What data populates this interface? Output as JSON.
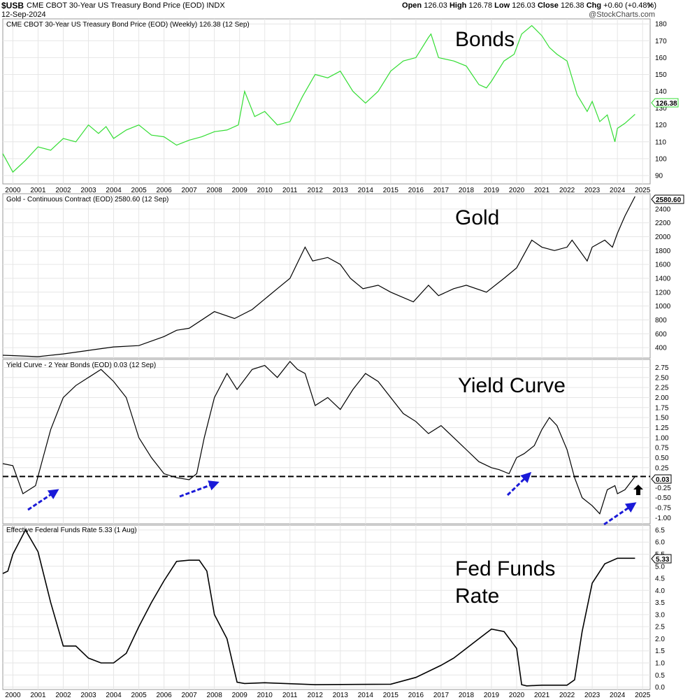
{
  "header": {
    "symbol": "$USB",
    "description": "CME CBOT 30-Year US Treasury Bond Price (EOD)",
    "exchange": "INDX",
    "date": "12-Sep-2024",
    "open_label": "Open",
    "open": "126.03",
    "high_label": "High",
    "high": "126.78",
    "low_label": "Low",
    "low": "126.03",
    "close_label": "Close",
    "close": "126.38",
    "chg_label": "Chg",
    "chg": "+0.60 (+0.48%)",
    "brand": "@StockCharts.com",
    "close_icon": "close-x-icon"
  },
  "colors": {
    "bonds_line": "#33dd33",
    "yield_arrows": "#1a1ad8",
    "frame": "#999999"
  },
  "chart_data": [
    {
      "type": "line",
      "title": "CME CBOT 30-Year US Treasury Bond Price (EOD) (Weekly) 126.38 (12 Sep)",
      "annotation": "Bonds",
      "last_label": "126.38",
      "x_ticks": [
        "2000",
        "2001",
        "2002",
        "2003",
        "2004",
        "2005",
        "2006",
        "2007",
        "2008",
        "2009",
        "2010",
        "2011",
        "2012",
        "2013",
        "2014",
        "2015",
        "2016",
        "2017",
        "2018",
        "2019",
        "2020",
        "2021",
        "2022",
        "2023",
        "2024",
        "2025"
      ],
      "y_ticks": [
        90,
        100,
        110,
        120,
        130,
        140,
        150,
        160,
        170,
        180
      ],
      "ylim": [
        85,
        183
      ],
      "xlim": [
        1999.6,
        2025.3
      ],
      "x": [
        1999.6,
        2000.0,
        2000.5,
        2001.0,
        2001.5,
        2002.0,
        2002.5,
        2003.0,
        2003.4,
        2003.7,
        2004.0,
        2004.5,
        2005.0,
        2005.5,
        2006.0,
        2006.5,
        2007.0,
        2007.5,
        2008.0,
        2008.5,
        2008.95,
        2009.2,
        2009.6,
        2010.0,
        2010.5,
        2011.0,
        2011.5,
        2012.0,
        2012.5,
        2013.0,
        2013.5,
        2014.0,
        2014.5,
        2015.0,
        2015.5,
        2016.0,
        2016.5,
        2016.6,
        2016.9,
        2017.5,
        2018.0,
        2018.5,
        2018.8,
        2019.0,
        2019.5,
        2019.9,
        2020.2,
        2020.6,
        2021.0,
        2021.3,
        2021.6,
        2022.0,
        2022.4,
        2022.8,
        2023.0,
        2023.3,
        2023.6,
        2023.9,
        2024.0,
        2024.3,
        2024.7
      ],
      "y": [
        103,
        92,
        99,
        107,
        105,
        112,
        110,
        120,
        115,
        119,
        112,
        117,
        120,
        114,
        113,
        108,
        111,
        113,
        116,
        117,
        120,
        140,
        125,
        128,
        120,
        122,
        137,
        150,
        148,
        152,
        140,
        133,
        140,
        152,
        158,
        160,
        172,
        174,
        160,
        158,
        155,
        144,
        142,
        146,
        158,
        162,
        174,
        179,
        173,
        166,
        162,
        158,
        138,
        128,
        134,
        122,
        126,
        110,
        118,
        121,
        126.38
      ]
    },
    {
      "type": "line",
      "title": "Gold - Continuous Contract (EOD) 2580.60 (12 Sep)",
      "annotation": "Gold",
      "last_label": "2580.60",
      "y_ticks": [
        400,
        600,
        800,
        1000,
        1200,
        1400,
        1600,
        1800,
        2000,
        2200,
        2400
      ],
      "ylim": [
        250,
        2620
      ],
      "xlim": [
        1999.6,
        2025.3
      ],
      "x": [
        1999.6,
        2000.0,
        2001.0,
        2002.0,
        2003.0,
        2004.0,
        2005.0,
        2006.0,
        2006.5,
        2007.0,
        2008.0,
        2008.8,
        2009.5,
        2010.0,
        2010.5,
        2011.0,
        2011.6,
        2011.9,
        2012.5,
        2013.0,
        2013.4,
        2013.9,
        2014.5,
        2015.0,
        2015.9,
        2016.5,
        2016.9,
        2017.5,
        2018.0,
        2018.8,
        2019.5,
        2020.0,
        2020.6,
        2021.0,
        2021.5,
        2022.0,
        2022.2,
        2022.8,
        2023.0,
        2023.5,
        2023.8,
        2024.0,
        2024.3,
        2024.7
      ],
      "y": [
        290,
        285,
        270,
        310,
        360,
        410,
        430,
        560,
        650,
        680,
        920,
        820,
        950,
        1100,
        1250,
        1400,
        1850,
        1650,
        1700,
        1600,
        1400,
        1250,
        1300,
        1200,
        1060,
        1300,
        1150,
        1250,
        1300,
        1200,
        1400,
        1550,
        1950,
        1850,
        1800,
        1850,
        1950,
        1650,
        1850,
        1950,
        1850,
        2050,
        2300,
        2580.6
      ]
    },
    {
      "type": "line",
      "title": "Yield Curve - 2 Year Bonds (EOD) 0.03 (12 Sep)",
      "annotation": "Yield Curve",
      "last_label": "0.03",
      "reference_line": 0.03,
      "y_ticks": [
        -1.0,
        -0.75,
        -0.5,
        -0.25,
        0.25,
        0.5,
        0.75,
        1.0,
        1.25,
        1.5,
        1.75,
        2.0,
        2.25,
        2.5,
        2.75
      ],
      "ylim": [
        -1.15,
        2.95
      ],
      "xlim": [
        1999.6,
        2025.3
      ],
      "x": [
        1999.6,
        2000.0,
        2000.4,
        2000.9,
        2001.2,
        2001.5,
        2002.0,
        2002.5,
        2003.0,
        2003.5,
        2004.0,
        2004.5,
        2005.0,
        2005.5,
        2006.0,
        2006.5,
        2007.0,
        2007.3,
        2007.6,
        2008.0,
        2008.5,
        2008.9,
        2009.5,
        2010.0,
        2010.5,
        2011.0,
        2011.3,
        2011.6,
        2012.0,
        2012.5,
        2013.0,
        2013.5,
        2014.0,
        2014.5,
        2015.0,
        2015.5,
        2016.0,
        2016.5,
        2017.0,
        2017.5,
        2018.0,
        2018.5,
        2019.0,
        2019.3,
        2019.7,
        2020.0,
        2020.3,
        2020.7,
        2021.0,
        2021.3,
        2021.6,
        2022.0,
        2022.3,
        2022.6,
        2023.0,
        2023.3,
        2023.6,
        2023.9,
        2024.0,
        2024.3,
        2024.7
      ],
      "y": [
        0.35,
        0.3,
        -0.4,
        -0.2,
        0.5,
        1.2,
        2.0,
        2.3,
        2.5,
        2.7,
        2.4,
        2.0,
        1.0,
        0.5,
        0.1,
        0.0,
        -0.05,
        0.1,
        1.0,
        2.0,
        2.6,
        2.2,
        2.7,
        2.8,
        2.5,
        2.9,
        2.7,
        2.6,
        1.8,
        2.0,
        1.7,
        2.2,
        2.6,
        2.4,
        2.0,
        1.6,
        1.4,
        1.1,
        1.3,
        1.0,
        0.7,
        0.4,
        0.25,
        0.2,
        0.1,
        0.5,
        0.6,
        0.8,
        1.2,
        1.5,
        1.3,
        0.7,
        0.0,
        -0.5,
        -0.7,
        -0.9,
        -0.3,
        -0.2,
        -0.4,
        -0.3,
        0.03
      ]
    },
    {
      "type": "line",
      "title": "Effective Federal Funds Rate 5.33 (1 Aug)",
      "annotation_line1": "Fed Funds",
      "annotation_line2": "Rate",
      "last_label": "5.33",
      "y_ticks": [
        0.0,
        0.5,
        1.0,
        1.5,
        2.0,
        2.5,
        3.0,
        3.5,
        4.0,
        4.5,
        5.0,
        5.5,
        6.0,
        6.5
      ],
      "ylim": [
        -0.1,
        6.7
      ],
      "xlim": [
        1999.6,
        2025.3
      ],
      "x": [
        1999.6,
        1999.8,
        2000.0,
        2000.5,
        2001.0,
        2001.5,
        2002.0,
        2002.5,
        2003.0,
        2003.5,
        2004.0,
        2004.5,
        2005.0,
        2005.5,
        2006.0,
        2006.5,
        2007.0,
        2007.4,
        2007.7,
        2008.0,
        2008.5,
        2008.9,
        2009.2,
        2010.0,
        2012.0,
        2015.0,
        2016.0,
        2017.0,
        2017.5,
        2018.0,
        2018.5,
        2019.0,
        2019.5,
        2020.0,
        2020.2,
        2020.4,
        2021.0,
        2022.0,
        2022.3,
        2022.6,
        2023.0,
        2023.5,
        2024.0,
        2024.7
      ],
      "y": [
        4.7,
        4.8,
        5.5,
        6.5,
        5.6,
        3.5,
        1.7,
        1.7,
        1.2,
        1.0,
        1.0,
        1.4,
        2.5,
        3.5,
        4.4,
        5.2,
        5.25,
        5.25,
        4.8,
        3.0,
        2.0,
        0.2,
        0.15,
        0.18,
        0.1,
        0.12,
        0.4,
        0.9,
        1.2,
        1.6,
        2.0,
        2.4,
        2.3,
        1.6,
        0.1,
        0.05,
        0.08,
        0.08,
        0.3,
        2.3,
        4.3,
        5.1,
        5.33,
        5.33
      ]
    }
  ]
}
